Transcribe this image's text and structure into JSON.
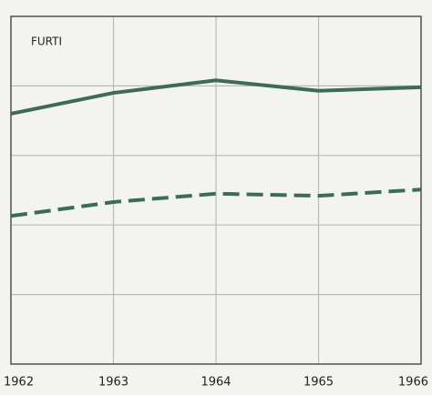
{
  "chart_data": {
    "type": "line",
    "title": "FURTI",
    "categories": [
      "1962",
      "1963",
      "1964",
      "1965",
      "1966"
    ],
    "series": [
      {
        "color": "#3e6b56",
        "style": "solid",
        "values": [
          3.6,
          3.9,
          4.08,
          3.93,
          3.98
        ]
      },
      {
        "color": "#3e6b56",
        "style": "dashed",
        "values": [
          2.13,
          2.33,
          2.45,
          2.42,
          2.51
        ]
      }
    ],
    "ylim": [
      0,
      5
    ],
    "yticks": [
      0,
      1,
      2,
      3,
      4,
      5
    ],
    "grid": true
  }
}
